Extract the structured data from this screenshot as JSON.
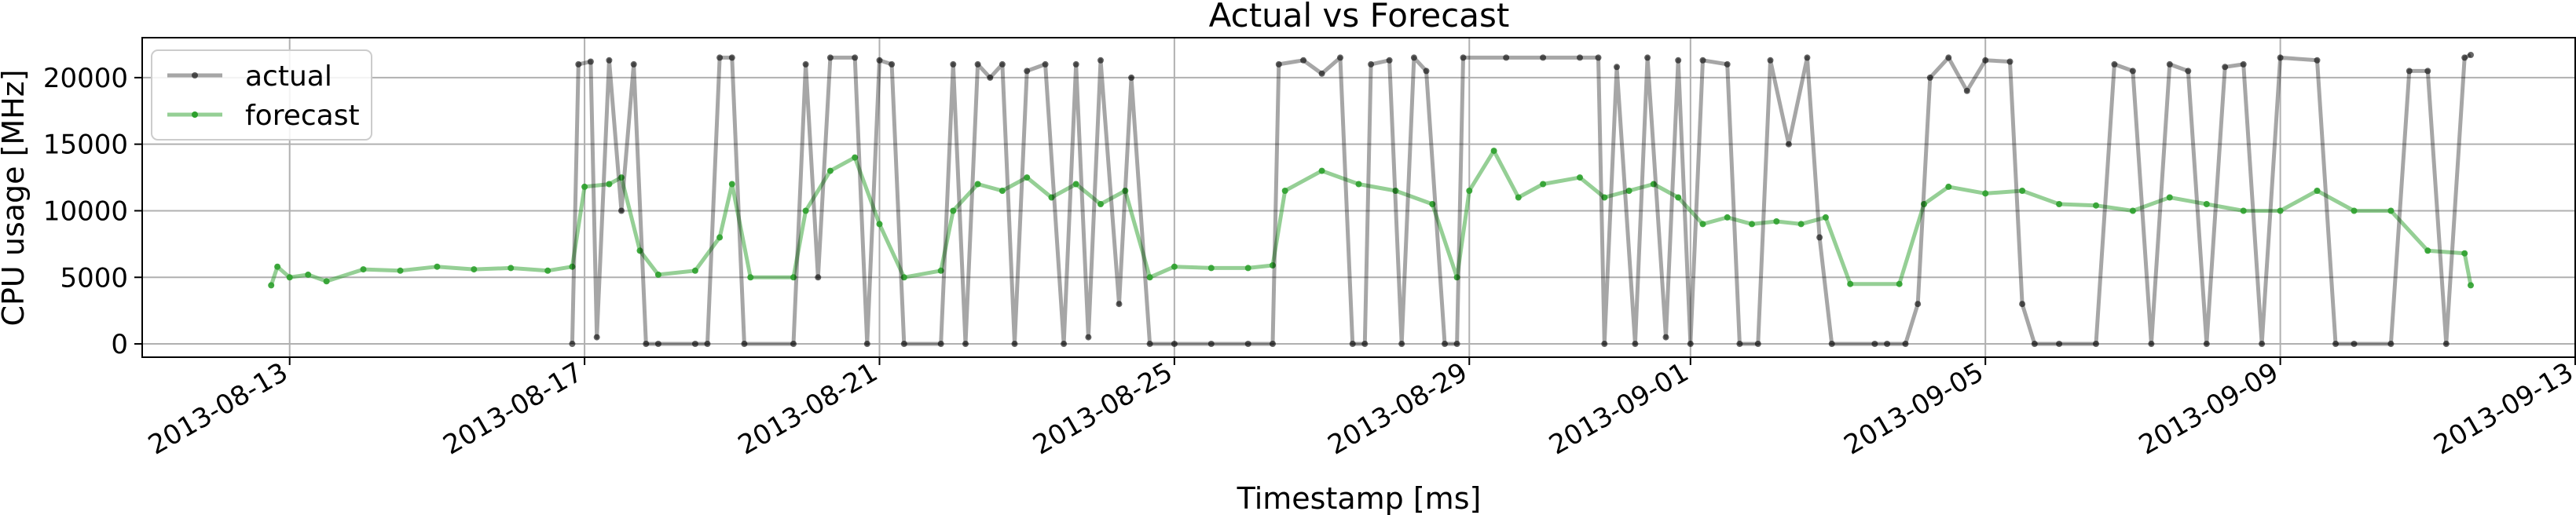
{
  "chart_data": {
    "type": "line",
    "title": "Actual vs Forecast",
    "xlabel": "Timestamp [ms]",
    "ylabel": "CPU usage [MHz]",
    "xlim": [
      "2013-08-11 00:00",
      "2013-09-13 00:00"
    ],
    "ylim": [
      -1000,
      23000
    ],
    "grid": true,
    "legend_position": "top-left",
    "x_ticks": [
      "2013-08-13",
      "2013-08-17",
      "2013-08-21",
      "2013-08-25",
      "2013-08-29",
      "2013-09-01",
      "2013-09-05",
      "2013-09-09",
      "2013-09-13"
    ],
    "y_ticks": [
      0,
      5000,
      10000,
      15000,
      20000
    ],
    "y_tick_labels": [
      "0",
      "5000",
      "10000",
      "15000",
      "20000"
    ],
    "colors": {
      "actual": "#000000",
      "forecast": "#2ca02c"
    },
    "series": [
      {
        "name": "actual",
        "note": "approximate actual CPU usage; rapid oscillation between ~0 and ~21500 MHz in high-activity periods",
        "points": [
          [
            "2013-08-16 20:00",
            0
          ],
          [
            "2013-08-16 22:00",
            21000
          ],
          [
            "2013-08-17 02:00",
            21200
          ],
          [
            "2013-08-17 04:00",
            500
          ],
          [
            "2013-08-17 08:00",
            21300
          ],
          [
            "2013-08-17 12:00",
            10000
          ],
          [
            "2013-08-17 16:00",
            21000
          ],
          [
            "2013-08-17 20:00",
            0
          ],
          [
            "2013-08-18 00:00",
            0
          ],
          [
            "2013-08-18 12:00",
            0
          ],
          [
            "2013-08-18 16:00",
            0
          ],
          [
            "2013-08-18 20:00",
            21500
          ],
          [
            "2013-08-19 00:00",
            21500
          ],
          [
            "2013-08-19 04:00",
            0
          ],
          [
            "2013-08-19 20:00",
            0
          ],
          [
            "2013-08-20 00:00",
            21000
          ],
          [
            "2013-08-20 04:00",
            5000
          ],
          [
            "2013-08-20 08:00",
            21500
          ],
          [
            "2013-08-20 16:00",
            21500
          ],
          [
            "2013-08-20 20:00",
            0
          ],
          [
            "2013-08-21 00:00",
            21300
          ],
          [
            "2013-08-21 04:00",
            21000
          ],
          [
            "2013-08-21 08:00",
            0
          ],
          [
            "2013-08-21 20:00",
            0
          ],
          [
            "2013-08-22 00:00",
            21000
          ],
          [
            "2013-08-22 04:00",
            0
          ],
          [
            "2013-08-22 08:00",
            21000
          ],
          [
            "2013-08-22 12:00",
            20000
          ],
          [
            "2013-08-22 16:00",
            21000
          ],
          [
            "2013-08-22 20:00",
            0
          ],
          [
            "2013-08-23 00:00",
            20500
          ],
          [
            "2013-08-23 06:00",
            21000
          ],
          [
            "2013-08-23 12:00",
            0
          ],
          [
            "2013-08-23 16:00",
            21000
          ],
          [
            "2013-08-23 20:00",
            500
          ],
          [
            "2013-08-24 00:00",
            21300
          ],
          [
            "2013-08-24 06:00",
            3000
          ],
          [
            "2013-08-24 10:00",
            20000
          ],
          [
            "2013-08-24 16:00",
            0
          ],
          [
            "2013-08-25 00:00",
            0
          ],
          [
            "2013-08-25 12:00",
            0
          ],
          [
            "2013-08-26 00:00",
            0
          ],
          [
            "2013-08-26 08:00",
            0
          ],
          [
            "2013-08-26 10:00",
            21000
          ],
          [
            "2013-08-26 18:00",
            21300
          ],
          [
            "2013-08-27 00:00",
            20300
          ],
          [
            "2013-08-27 06:00",
            21500
          ],
          [
            "2013-08-27 10:00",
            0
          ],
          [
            "2013-08-27 14:00",
            0
          ],
          [
            "2013-08-27 16:00",
            21000
          ],
          [
            "2013-08-27 22:00",
            21300
          ],
          [
            "2013-08-28 02:00",
            0
          ],
          [
            "2013-08-28 06:00",
            21500
          ],
          [
            "2013-08-28 10:00",
            20500
          ],
          [
            "2013-08-28 16:00",
            0
          ],
          [
            "2013-08-28 20:00",
            0
          ],
          [
            "2013-08-28 22:00",
            21500
          ],
          [
            "2013-08-29 12:00",
            21500
          ],
          [
            "2013-08-30 00:00",
            21500
          ],
          [
            "2013-08-30 12:00",
            21500
          ],
          [
            "2013-08-30 18:00",
            21500
          ],
          [
            "2013-08-30 20:00",
            0
          ],
          [
            "2013-08-31 00:00",
            20800
          ],
          [
            "2013-08-31 06:00",
            0
          ],
          [
            "2013-08-31 10:00",
            21500
          ],
          [
            "2013-08-31 16:00",
            500
          ],
          [
            "2013-08-31 20:00",
            21300
          ],
          [
            "2013-09-01 00:00",
            0
          ],
          [
            "2013-09-01 04:00",
            21300
          ],
          [
            "2013-09-01 12:00",
            21000
          ],
          [
            "2013-09-01 16:00",
            0
          ],
          [
            "2013-09-01 22:00",
            0
          ],
          [
            "2013-09-02 02:00",
            21300
          ],
          [
            "2013-09-02 08:00",
            15000
          ],
          [
            "2013-09-02 14:00",
            21500
          ],
          [
            "2013-09-02 18:00",
            8000
          ],
          [
            "2013-09-02 22:00",
            0
          ],
          [
            "2013-09-03 12:00",
            0
          ],
          [
            "2013-09-03 16:00",
            0
          ],
          [
            "2013-09-03 22:00",
            0
          ],
          [
            "2013-09-04 02:00",
            3000
          ],
          [
            "2013-09-04 06:00",
            20000
          ],
          [
            "2013-09-04 12:00",
            21500
          ],
          [
            "2013-09-04 18:00",
            19000
          ],
          [
            "2013-09-05 00:00",
            21300
          ],
          [
            "2013-09-05 08:00",
            21200
          ],
          [
            "2013-09-05 12:00",
            3000
          ],
          [
            "2013-09-05 16:00",
            0
          ],
          [
            "2013-09-06 00:00",
            0
          ],
          [
            "2013-09-06 12:00",
            0
          ],
          [
            "2013-09-06 18:00",
            21000
          ],
          [
            "2013-09-07 00:00",
            20500
          ],
          [
            "2013-09-07 06:00",
            0
          ],
          [
            "2013-09-07 12:00",
            21000
          ],
          [
            "2013-09-07 18:00",
            20500
          ],
          [
            "2013-09-08 00:00",
            0
          ],
          [
            "2013-09-08 06:00",
            20800
          ],
          [
            "2013-09-08 12:00",
            21000
          ],
          [
            "2013-09-08 18:00",
            0
          ],
          [
            "2013-09-09 00:00",
            21500
          ],
          [
            "2013-09-09 12:00",
            21300
          ],
          [
            "2013-09-09 18:00",
            0
          ],
          [
            "2013-09-10 00:00",
            0
          ],
          [
            "2013-09-10 12:00",
            0
          ],
          [
            "2013-09-10 18:00",
            20500
          ],
          [
            "2013-09-11 00:00",
            20500
          ],
          [
            "2013-09-11 06:00",
            0
          ],
          [
            "2013-09-11 12:00",
            21500
          ],
          [
            "2013-09-11 14:00",
            21700
          ]
        ]
      },
      {
        "name": "forecast",
        "note": "approximate forecast; baseline ~4400-6000 MHz with frequent spikes up to ~15000 MHz",
        "points": [
          [
            "2013-08-12 18:00",
            4400
          ],
          [
            "2013-08-12 20:00",
            5800
          ],
          [
            "2013-08-13 00:00",
            5000
          ],
          [
            "2013-08-13 06:00",
            5200
          ],
          [
            "2013-08-13 12:00",
            4700
          ],
          [
            "2013-08-14 00:00",
            5600
          ],
          [
            "2013-08-14 12:00",
            5500
          ],
          [
            "2013-08-15 00:00",
            5800
          ],
          [
            "2013-08-15 12:00",
            5600
          ],
          [
            "2013-08-16 00:00",
            5700
          ],
          [
            "2013-08-16 12:00",
            5500
          ],
          [
            "2013-08-16 20:00",
            5800
          ],
          [
            "2013-08-17 00:00",
            11800
          ],
          [
            "2013-08-17 08:00",
            12000
          ],
          [
            "2013-08-17 12:00",
            12500
          ],
          [
            "2013-08-17 18:00",
            7000
          ],
          [
            "2013-08-18 00:00",
            5200
          ],
          [
            "2013-08-18 12:00",
            5500
          ],
          [
            "2013-08-18 20:00",
            8000
          ],
          [
            "2013-08-19 00:00",
            12000
          ],
          [
            "2013-08-19 06:00",
            5000
          ],
          [
            "2013-08-19 20:00",
            5000
          ],
          [
            "2013-08-20 00:00",
            10000
          ],
          [
            "2013-08-20 08:00",
            13000
          ],
          [
            "2013-08-20 16:00",
            14000
          ],
          [
            "2013-08-21 00:00",
            9000
          ],
          [
            "2013-08-21 08:00",
            5000
          ],
          [
            "2013-08-21 20:00",
            5500
          ],
          [
            "2013-08-22 00:00",
            10000
          ],
          [
            "2013-08-22 08:00",
            12000
          ],
          [
            "2013-08-22 16:00",
            11500
          ],
          [
            "2013-08-23 00:00",
            12500
          ],
          [
            "2013-08-23 08:00",
            11000
          ],
          [
            "2013-08-23 16:00",
            12000
          ],
          [
            "2013-08-24 00:00",
            10500
          ],
          [
            "2013-08-24 08:00",
            11500
          ],
          [
            "2013-08-24 16:00",
            5000
          ],
          [
            "2013-08-25 00:00",
            5800
          ],
          [
            "2013-08-25 12:00",
            5700
          ],
          [
            "2013-08-26 00:00",
            5700
          ],
          [
            "2013-08-26 08:00",
            5900
          ],
          [
            "2013-08-26 12:00",
            11500
          ],
          [
            "2013-08-27 00:00",
            13000
          ],
          [
            "2013-08-27 12:00",
            12000
          ],
          [
            "2013-08-28 00:00",
            11500
          ],
          [
            "2013-08-28 12:00",
            10500
          ],
          [
            "2013-08-28 20:00",
            5000
          ],
          [
            "2013-08-29 00:00",
            11500
          ],
          [
            "2013-08-29 08:00",
            14500
          ],
          [
            "2013-08-29 16:00",
            11000
          ],
          [
            "2013-08-30 00:00",
            12000
          ],
          [
            "2013-08-30 12:00",
            12500
          ],
          [
            "2013-08-30 20:00",
            11000
          ],
          [
            "2013-08-31 04:00",
            11500
          ],
          [
            "2013-08-31 12:00",
            12000
          ],
          [
            "2013-08-31 20:00",
            11000
          ],
          [
            "2013-09-01 04:00",
            9000
          ],
          [
            "2013-09-01 12:00",
            9500
          ],
          [
            "2013-09-01 20:00",
            9000
          ],
          [
            "2013-09-02 04:00",
            9200
          ],
          [
            "2013-09-02 12:00",
            9000
          ],
          [
            "2013-09-02 20:00",
            9500
          ],
          [
            "2013-09-03 04:00",
            4500
          ],
          [
            "2013-09-03 20:00",
            4500
          ],
          [
            "2013-09-04 04:00",
            10500
          ],
          [
            "2013-09-04 12:00",
            11800
          ],
          [
            "2013-09-05 00:00",
            11300
          ],
          [
            "2013-09-05 12:00",
            11500
          ],
          [
            "2013-09-06 00:00",
            10500
          ],
          [
            "2013-09-06 12:00",
            10400
          ],
          [
            "2013-09-07 00:00",
            10000
          ],
          [
            "2013-09-07 12:00",
            11000
          ],
          [
            "2013-09-08 00:00",
            10500
          ],
          [
            "2013-09-08 12:00",
            10000
          ],
          [
            "2013-09-09 00:00",
            10000
          ],
          [
            "2013-09-09 12:00",
            11500
          ],
          [
            "2013-09-10 00:00",
            10000
          ],
          [
            "2013-09-10 12:00",
            10000
          ],
          [
            "2013-09-11 00:00",
            7000
          ],
          [
            "2013-09-11 12:00",
            6800
          ],
          [
            "2013-09-11 14:00",
            4400
          ]
        ]
      }
    ]
  }
}
